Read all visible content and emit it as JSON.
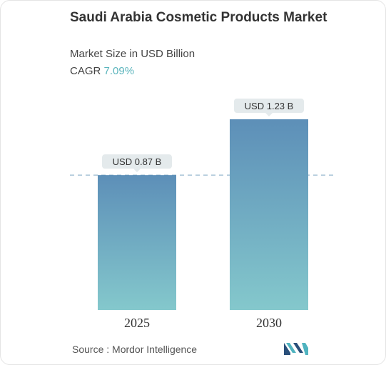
{
  "header": {
    "title": "Saudi Arabia Cosmetic Products Market",
    "subtitle": "Market Size in USD Billion",
    "cagr_label": "CAGR",
    "cagr_value": "7.09%"
  },
  "chart_data": {
    "type": "bar",
    "categories": [
      "2025",
      "2030"
    ],
    "values": [
      0.87,
      1.23
    ],
    "data_labels": [
      "USD 0.87 B",
      "USD 1.23 B"
    ],
    "ylabel": "Market Size in USD Billion",
    "ylim": [
      0,
      1.23
    ],
    "grid": false,
    "reference_line_value": 0.87
  },
  "footer": {
    "source_label": "Source :",
    "source_name": "Mordor Intelligence"
  },
  "colors": {
    "bar_top": "#5d8fb8",
    "bar_bottom": "#84c8cc",
    "label_bg": "#e4eaec",
    "dashed_line": "#7fa7c4",
    "cagr_value": "#5ab4bc"
  },
  "logo": {
    "icon": "mordor-intelligence-logo-icon"
  }
}
